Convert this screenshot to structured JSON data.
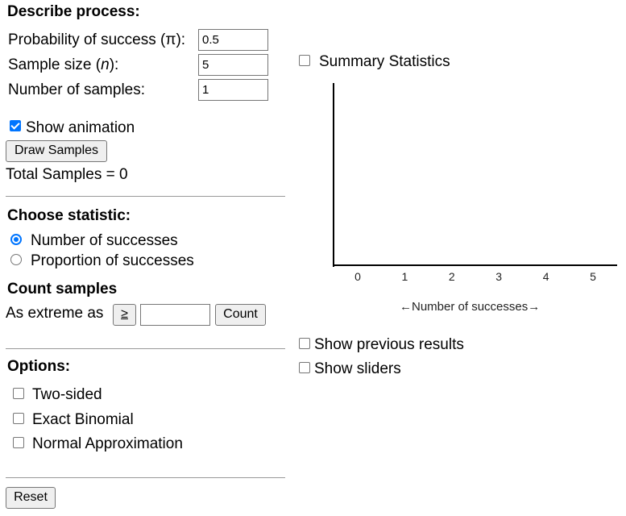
{
  "process": {
    "heading": "Describe process:",
    "prob_label_pre": "Probability of success (",
    "prob_label_sym": "π",
    "prob_label_post": "):",
    "prob_value": "0.5",
    "size_label_pre": "Sample size (",
    "size_label_sym": "n",
    "size_label_post": "):",
    "size_value": "5",
    "num_label": "Number of samples:",
    "num_value": "1",
    "animation_label": "Show animation",
    "draw_button": "Draw Samples",
    "total_samples": "Total Samples = 0"
  },
  "statistic": {
    "heading": "Choose statistic:",
    "option_count": "Number of successes",
    "option_proportion": "Proportion of successes"
  },
  "count": {
    "heading": "Count samples",
    "label": "As extreme as",
    "operator": "≥",
    "value": "",
    "button": "Count"
  },
  "options": {
    "heading": "Options:",
    "two_sided": "Two-sided",
    "exact_binomial": "Exact Binomial",
    "normal_approx": "Normal Approximation"
  },
  "reset_button": "Reset",
  "summary_statistics": "Summary Statistics",
  "chart_data": {
    "type": "bar",
    "categories": [
      "0",
      "1",
      "2",
      "3",
      "4",
      "5"
    ],
    "values": [
      0,
      0,
      0,
      0,
      0,
      0
    ],
    "xlabel": "←Number of successes→"
  },
  "show_previous": "Show previous results",
  "show_sliders": "Show sliders"
}
